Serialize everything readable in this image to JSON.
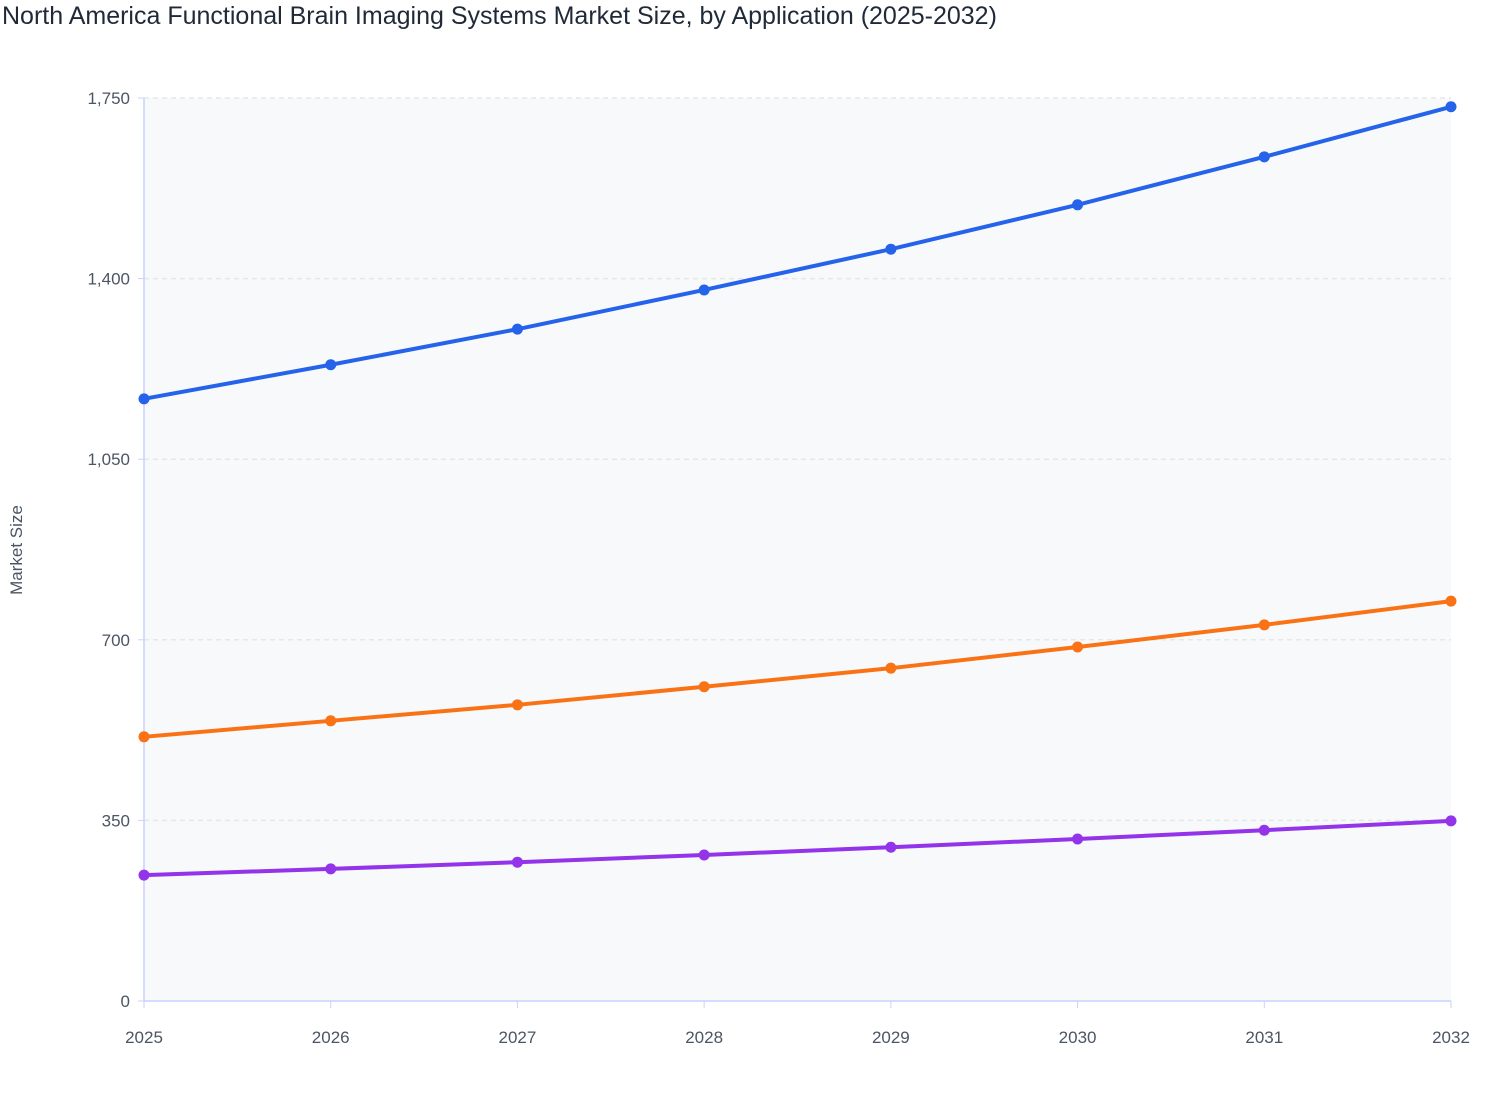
{
  "chart_data": {
    "type": "line",
    "title": "North America Functional Brain Imaging Systems Market Size, by Application (2025-2032)",
    "xlabel": "",
    "ylabel": "Market Size",
    "x": [
      "2025",
      "2026",
      "2027",
      "2028",
      "2029",
      "2030",
      "2031",
      "2032"
    ],
    "ylim": [
      0,
      1750
    ],
    "yticks": [
      0,
      350,
      700,
      1050,
      1400,
      1750
    ],
    "ytick_labels": [
      "0",
      "350",
      "700",
      "1,050",
      "1,400",
      "1,750"
    ],
    "grid": true,
    "series": [
      {
        "color": "#2563eb",
        "values": [
          1167,
          1233,
          1302,
          1378,
          1457,
          1543,
          1636,
          1733
        ]
      },
      {
        "color": "#f97316",
        "values": [
          512,
          543,
          574,
          609,
          645,
          686,
          729,
          775
        ]
      },
      {
        "color": "#9333ea",
        "values": [
          244,
          256,
          269,
          283,
          298,
          314,
          331,
          349
        ]
      }
    ]
  }
}
